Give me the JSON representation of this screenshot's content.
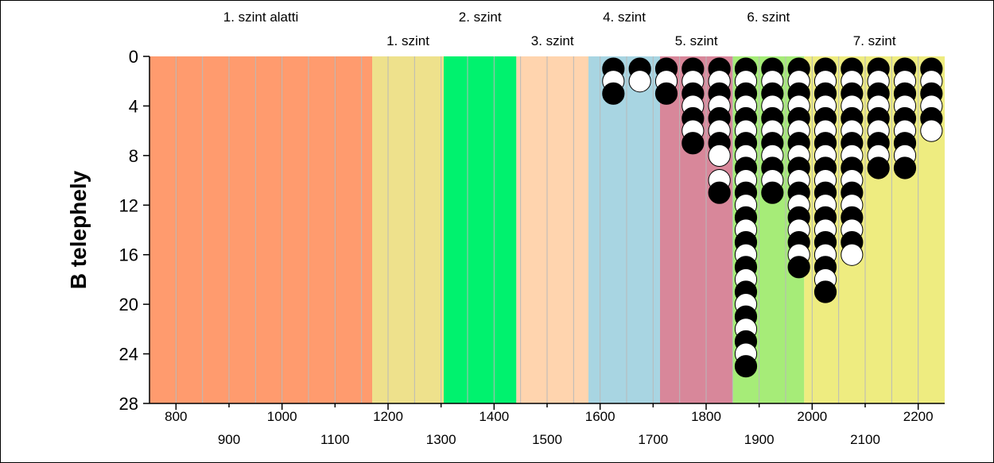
{
  "chart_data": {
    "type": "scatter",
    "ylabel": "B telephely",
    "xlim": [
      750,
      2250
    ],
    "ylim": [
      0,
      28
    ],
    "y_inverted": true,
    "y_ticks": [
      "0",
      "4",
      "8",
      "12",
      "16",
      "20",
      "24",
      "28"
    ],
    "x_ticks_top_row": [
      "800",
      "1000",
      "1200",
      "1400",
      "1600",
      "1800",
      "2000",
      "2200"
    ],
    "x_ticks_bottom_row": [
      "900",
      "1100",
      "1300",
      "1500",
      "1700",
      "1900",
      "2100"
    ],
    "grid": true,
    "levels": [
      {
        "label": "1. szint alatti",
        "from": 750,
        "to": 1170,
        "color": "#ff9b6e",
        "label_row": 1
      },
      {
        "label": "1. szint",
        "from": 1170,
        "to": 1305,
        "color": "#eee18c",
        "label_row": 2
      },
      {
        "label": "2. szint",
        "from": 1305,
        "to": 1442,
        "color": "#00f26e",
        "label_row": 1
      },
      {
        "label": "3. szint",
        "from": 1442,
        "to": 1578,
        "color": "#ffd4ae",
        "label_row": 2
      },
      {
        "label": "4. szint",
        "from": 1578,
        "to": 1713,
        "color": "#a8d5e2",
        "label_row": 1
      },
      {
        "label": "5. szint",
        "from": 1713,
        "to": 1850,
        "color": "#d8879a",
        "label_row": 2
      },
      {
        "label": "6. szint",
        "from": 1850,
        "to": 1985,
        "color": "#a6ec78",
        "label_row": 1
      },
      {
        "label": "7. szint",
        "from": 1985,
        "to": 2250,
        "color": "#eeec80",
        "label_row": 2
      }
    ],
    "series": [
      {
        "color": "black",
        "points": [
          [
            1625,
            1
          ],
          [
            1625,
            3
          ],
          [
            1675,
            1
          ],
          [
            1725,
            1
          ],
          [
            1725,
            3
          ],
          [
            1775,
            1
          ],
          [
            1775,
            3
          ],
          [
            1775,
            5
          ],
          [
            1775,
            7
          ],
          [
            1825,
            1
          ],
          [
            1825,
            3
          ],
          [
            1825,
            5
          ],
          [
            1825,
            7
          ],
          [
            1825,
            11
          ],
          [
            1875,
            1
          ],
          [
            1875,
            3
          ],
          [
            1875,
            5
          ],
          [
            1875,
            7
          ],
          [
            1875,
            9
          ],
          [
            1875,
            11
          ],
          [
            1875,
            13
          ],
          [
            1875,
            15
          ],
          [
            1875,
            17
          ],
          [
            1875,
            19
          ],
          [
            1875,
            21
          ],
          [
            1875,
            23
          ],
          [
            1875,
            25
          ],
          [
            1925,
            1
          ],
          [
            1925,
            3
          ],
          [
            1925,
            5
          ],
          [
            1925,
            7
          ],
          [
            1925,
            9
          ],
          [
            1925,
            11
          ],
          [
            1975,
            1
          ],
          [
            1975,
            3
          ],
          [
            1975,
            5
          ],
          [
            1975,
            7
          ],
          [
            1975,
            9
          ],
          [
            1975,
            11
          ],
          [
            1975,
            13
          ],
          [
            1975,
            15
          ],
          [
            1975,
            17
          ],
          [
            2025,
            1
          ],
          [
            2025,
            3
          ],
          [
            2025,
            5
          ],
          [
            2025,
            7
          ],
          [
            2025,
            9
          ],
          [
            2025,
            11
          ],
          [
            2025,
            13
          ],
          [
            2025,
            15
          ],
          [
            2025,
            17
          ],
          [
            2025,
            19
          ],
          [
            2075,
            1
          ],
          [
            2075,
            3
          ],
          [
            2075,
            5
          ],
          [
            2075,
            7
          ],
          [
            2075,
            9
          ],
          [
            2075,
            11
          ],
          [
            2075,
            13
          ],
          [
            2075,
            15
          ],
          [
            2125,
            1
          ],
          [
            2125,
            3
          ],
          [
            2125,
            5
          ],
          [
            2125,
            7
          ],
          [
            2125,
            9
          ],
          [
            2175,
            1
          ],
          [
            2175,
            3
          ],
          [
            2175,
            5
          ],
          [
            2175,
            7
          ],
          [
            2175,
            9
          ],
          [
            2225,
            1
          ],
          [
            2225,
            3
          ],
          [
            2225,
            5
          ]
        ]
      },
      {
        "color": "white",
        "points": [
          [
            1625,
            2
          ],
          [
            1675,
            2
          ],
          [
            1725,
            2
          ],
          [
            1775,
            2
          ],
          [
            1775,
            4
          ],
          [
            1775,
            6
          ],
          [
            1825,
            2
          ],
          [
            1825,
            4
          ],
          [
            1825,
            6
          ],
          [
            1825,
            8
          ],
          [
            1825,
            10
          ],
          [
            1875,
            2
          ],
          [
            1875,
            4
          ],
          [
            1875,
            6
          ],
          [
            1875,
            8
          ],
          [
            1875,
            10
          ],
          [
            1875,
            12
          ],
          [
            1875,
            14
          ],
          [
            1875,
            16
          ],
          [
            1875,
            18
          ],
          [
            1875,
            20
          ],
          [
            1875,
            22
          ],
          [
            1875,
            24
          ],
          [
            1925,
            2
          ],
          [
            1925,
            4
          ],
          [
            1925,
            6
          ],
          [
            1925,
            8
          ],
          [
            1925,
            10
          ],
          [
            1975,
            2
          ],
          [
            1975,
            4
          ],
          [
            1975,
            6
          ],
          [
            1975,
            8
          ],
          [
            1975,
            10
          ],
          [
            1975,
            12
          ],
          [
            1975,
            14
          ],
          [
            1975,
            16
          ],
          [
            2025,
            2
          ],
          [
            2025,
            4
          ],
          [
            2025,
            6
          ],
          [
            2025,
            8
          ],
          [
            2025,
            10
          ],
          [
            2025,
            12
          ],
          [
            2025,
            14
          ],
          [
            2025,
            16
          ],
          [
            2025,
            18
          ],
          [
            2075,
            2
          ],
          [
            2075,
            4
          ],
          [
            2075,
            6
          ],
          [
            2075,
            8
          ],
          [
            2075,
            10
          ],
          [
            2075,
            12
          ],
          [
            2075,
            14
          ],
          [
            2075,
            16
          ],
          [
            2125,
            2
          ],
          [
            2125,
            4
          ],
          [
            2125,
            6
          ],
          [
            2125,
            8
          ],
          [
            2175,
            2
          ],
          [
            2175,
            4
          ],
          [
            2175,
            6
          ],
          [
            2175,
            8
          ],
          [
            2225,
            2
          ],
          [
            2225,
            4
          ],
          [
            2225,
            6
          ]
        ]
      }
    ]
  }
}
